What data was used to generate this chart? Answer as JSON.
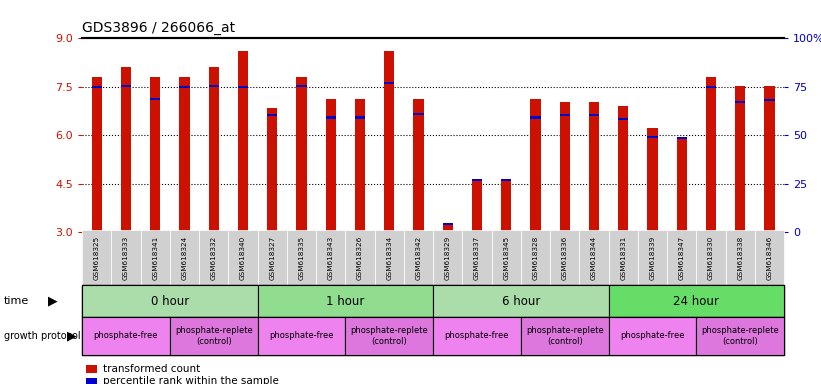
{
  "title": "GDS3896 / 266066_at",
  "samples": [
    "GSM618325",
    "GSM618333",
    "GSM618341",
    "GSM618324",
    "GSM618332",
    "GSM618340",
    "GSM618327",
    "GSM618335",
    "GSM618343",
    "GSM618326",
    "GSM618334",
    "GSM618342",
    "GSM618329",
    "GSM618337",
    "GSM618345",
    "GSM618328",
    "GSM618336",
    "GSM618344",
    "GSM618331",
    "GSM618339",
    "GSM618347",
    "GSM618330",
    "GSM618338",
    "GSM618346"
  ],
  "red_values": [
    7.82,
    8.12,
    7.82,
    7.82,
    8.12,
    8.62,
    6.85,
    7.82,
    7.12,
    7.12,
    8.62,
    7.12,
    3.22,
    4.62,
    4.62,
    7.12,
    7.02,
    7.02,
    6.92,
    6.22,
    5.92,
    7.82,
    7.52,
    7.52
  ],
  "blue_values": [
    7.45,
    7.5,
    7.1,
    7.45,
    7.5,
    7.45,
    6.6,
    7.5,
    6.52,
    6.52,
    7.58,
    6.62,
    3.22,
    4.58,
    4.58,
    6.52,
    6.6,
    6.6,
    6.48,
    5.92,
    5.88,
    7.45,
    7.0,
    7.05
  ],
  "ylim_low": 3,
  "ylim_high": 9,
  "yticks": [
    3,
    4.5,
    6,
    7.5,
    9
  ],
  "right_ytick_vals": [
    3,
    4.5,
    6,
    7.5,
    9
  ],
  "right_yticklabels": [
    "0",
    "25",
    "50",
    "75",
    "100%"
  ],
  "bar_color": "#cc1100",
  "dot_color": "#0000cc",
  "time_groups": [
    {
      "label": "0 hour",
      "start": 0,
      "end": 6
    },
    {
      "label": "1 hour",
      "start": 6,
      "end": 12
    },
    {
      "label": "6 hour",
      "start": 12,
      "end": 18
    },
    {
      "label": "24 hour",
      "start": 18,
      "end": 24
    }
  ],
  "time_colors": [
    "#aaddaa",
    "#90dd90",
    "#aaddaa",
    "#66dd66"
  ],
  "protocol_groups": [
    {
      "label": "phosphate-free",
      "start": 0,
      "end": 3,
      "type": 0
    },
    {
      "label": "phosphate-replete\n(control)",
      "start": 3,
      "end": 6,
      "type": 1
    },
    {
      "label": "phosphate-free",
      "start": 6,
      "end": 9,
      "type": 0
    },
    {
      "label": "phosphate-replete\n(control)",
      "start": 9,
      "end": 12,
      "type": 1
    },
    {
      "label": "phosphate-free",
      "start": 12,
      "end": 15,
      "type": 0
    },
    {
      "label": "phosphate-replete\n(control)",
      "start": 15,
      "end": 18,
      "type": 1
    },
    {
      "label": "phosphate-free",
      "start": 18,
      "end": 21,
      "type": 0
    },
    {
      "label": "phosphate-replete\n(control)",
      "start": 21,
      "end": 24,
      "type": 1
    }
  ],
  "prot_colors": [
    "#ee82ee",
    "#dd77dd"
  ]
}
